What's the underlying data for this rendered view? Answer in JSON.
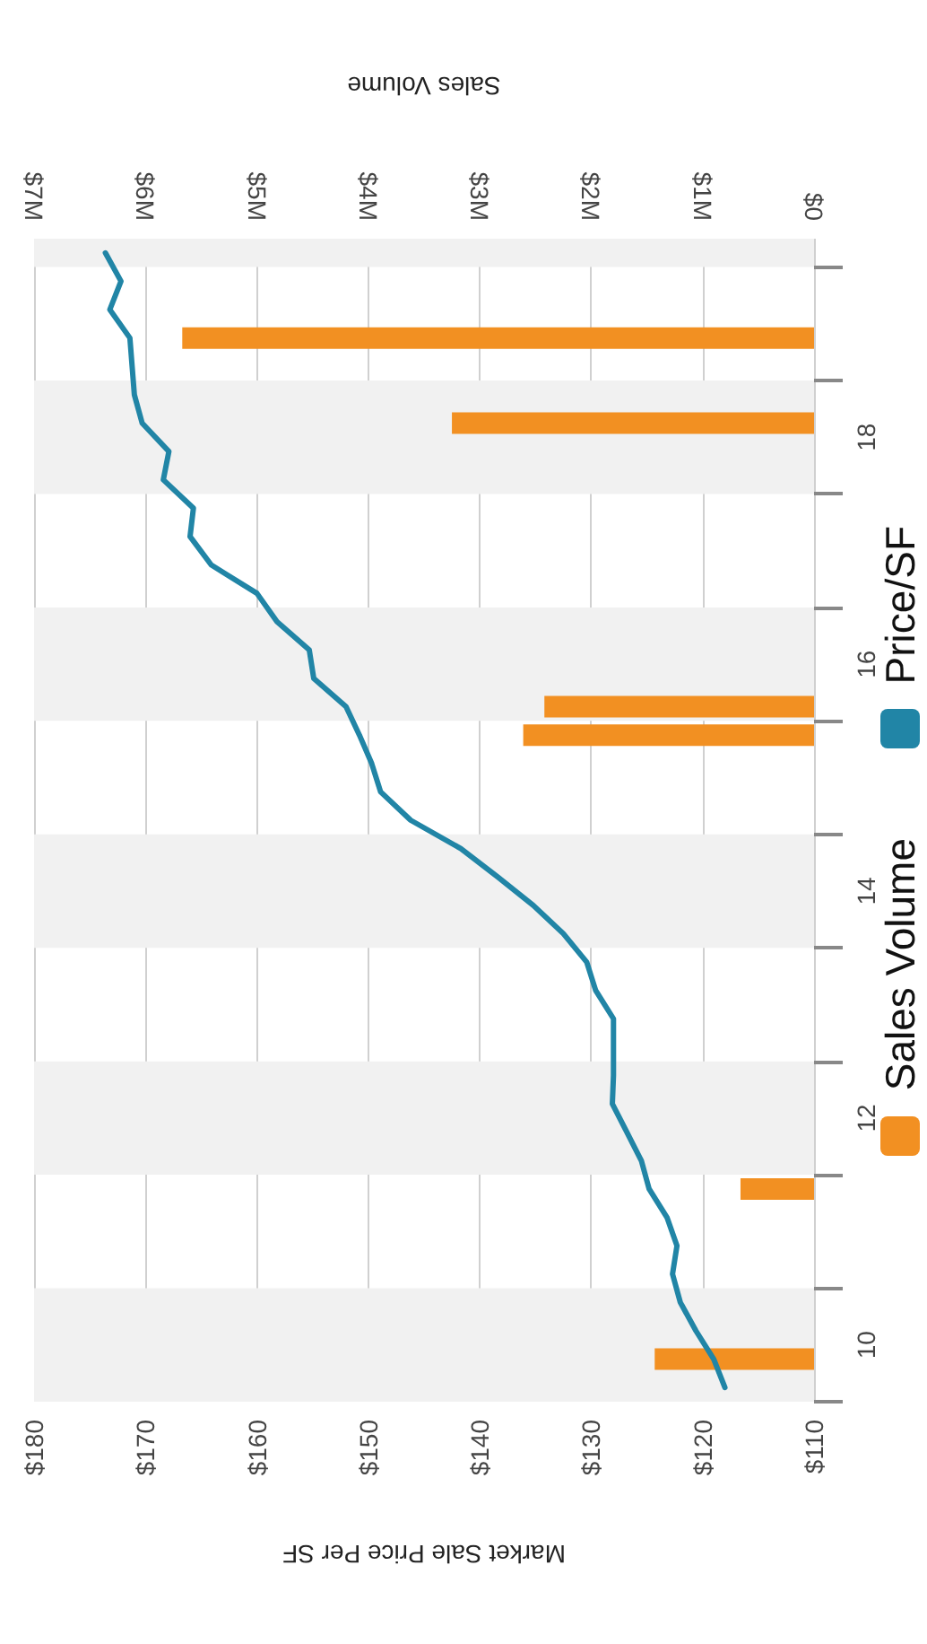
{
  "chart_data": {
    "type": "line",
    "orientation": "horizontal",
    "xlabel": "Market Sale Price Per SF",
    "x2label": "Sales Volume",
    "ylim": [
      9.5,
      19.75
    ],
    "yticks": [
      {
        "value": 9.5,
        "label": null
      },
      {
        "value": 10.5,
        "label": null
      },
      {
        "value": 11.5,
        "label": null
      },
      {
        "value": 12.5,
        "label": null
      },
      {
        "value": 13.5,
        "label": null
      },
      {
        "value": 14.5,
        "label": null
      },
      {
        "value": 15.5,
        "label": null
      },
      {
        "value": 16.5,
        "label": null
      },
      {
        "value": 17.5,
        "label": null
      },
      {
        "value": 18.5,
        "label": null
      },
      {
        "value": 19.5,
        "label": null
      },
      10,
      12,
      14,
      16,
      18
    ],
    "xlim": [
      180,
      110
    ],
    "xticks": [
      {
        "value": 110,
        "label": "$110"
      },
      {
        "value": 120,
        "label": "$120"
      },
      {
        "value": 130,
        "label": "$130"
      },
      {
        "value": 140,
        "label": "$140"
      },
      {
        "value": 150,
        "label": "$150"
      },
      {
        "value": 160,
        "label": "$160"
      },
      {
        "value": 170,
        "label": "$170"
      },
      {
        "value": 180,
        "label": "$180"
      }
    ],
    "x2lim": [
      7000000,
      0
    ],
    "x2ticks": [
      {
        "value": 0,
        "label": "$0"
      },
      {
        "value": 1000000,
        "label": "$1M"
      },
      {
        "value": 2000000,
        "label": "$2M"
      },
      {
        "value": 3000000,
        "label": "$3M"
      },
      {
        "value": 4000000,
        "label": "$4M"
      },
      {
        "value": 5000000,
        "label": "$5M"
      },
      {
        "value": 6000000,
        "label": "$6M"
      },
      {
        "value": 7000000,
        "label": "$7M"
      }
    ],
    "grid": "x",
    "legend": "right",
    "marker": "none",
    "line_style": "solid",
    "bands": [
      {
        "axis": "y",
        "from": 9.5,
        "to": 10.5,
        "color": "#f1f1f1"
      },
      {
        "axis": "y",
        "from": 11.5,
        "to": 12.5,
        "color": "#f1f1f1"
      },
      {
        "axis": "y",
        "from": 13.5,
        "to": 14.5,
        "color": "#f1f1f1"
      },
      {
        "axis": "y",
        "from": 15.5,
        "to": 16.5,
        "color": "#f1f1f1"
      },
      {
        "axis": "y",
        "from": 17.5,
        "to": 18.5,
        "color": "#f1f1f1"
      },
      {
        "axis": "y",
        "from": 19.5,
        "to": 19.75,
        "color": "#f1f1f1"
      }
    ],
    "series": [
      {
        "name": "Sales Volume",
        "type": "bar",
        "axis": "x2",
        "color": "#f29022",
        "x": [
          9.875,
          11.375,
          15.375,
          15.625,
          18.125,
          18.875
        ],
        "values": [
          1430000,
          660000,
          2610000,
          2420000,
          3250000,
          5670000
        ]
      },
      {
        "name": "Price/SF",
        "color": "#2185a6",
        "x": [
          9.625,
          9.875,
          10.125,
          10.375,
          10.625,
          10.875,
          11.125,
          11.375,
          11.625,
          11.875,
          12.125,
          12.375,
          12.625,
          12.875,
          13.125,
          13.375,
          13.625,
          13.875,
          14.125,
          14.375,
          14.625,
          14.875,
          15.125,
          15.375,
          15.625,
          15.875,
          16.125,
          16.375,
          16.625,
          16.875,
          17.125,
          17.375,
          17.625,
          17.875,
          18.125,
          18.375,
          18.625,
          18.875,
          19.125,
          19.375,
          19.625
        ],
        "values": [
          118.0,
          119.0,
          120.6,
          122.0,
          122.7,
          122.3,
          123.2,
          124.8,
          125.5,
          126.8,
          128.1,
          128.0,
          128.0,
          128.0,
          129.6,
          130.4,
          132.5,
          135.2,
          138.4,
          141.7,
          146.2,
          148.9,
          149.7,
          150.8,
          152.0,
          154.9,
          155.3,
          158.2,
          160.0,
          164.1,
          166.0,
          165.7,
          168.4,
          167.9,
          170.3,
          171.0,
          171.2,
          171.4,
          173.2,
          172.2,
          173.6
        ]
      }
    ]
  }
}
